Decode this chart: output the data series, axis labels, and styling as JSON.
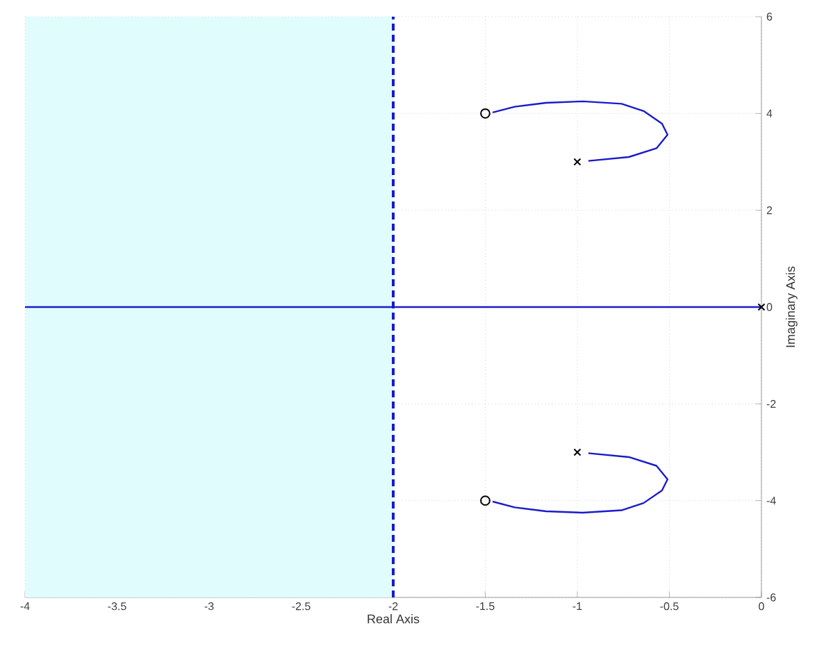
{
  "chart_data": {
    "type": "line",
    "xlabel": "Real Axis",
    "ylabel": "Imaginary Axis",
    "xlim": [
      -4,
      0
    ],
    "ylim": [
      -6,
      6
    ],
    "xticks": [
      -4,
      -3.5,
      -3,
      -2.5,
      -2,
      -1.5,
      -1,
      -0.5,
      0
    ],
    "yticks": [
      -6,
      -4,
      -2,
      0,
      2,
      4,
      6
    ],
    "grid": true,
    "line_style": "solid",
    "series": [
      {
        "color": "#1a1acc",
        "x": [
          -0.94,
          -0.72,
          -0.57,
          -0.51,
          -0.54,
          -0.64,
          -0.76,
          -0.97,
          -1.17,
          -1.34,
          -1.46
        ],
        "values": [
          3.02,
          3.1,
          3.28,
          3.56,
          3.79,
          4.05,
          4.2,
          4.25,
          4.22,
          4.14,
          4.02
        ]
      },
      {
        "color": "#1a1acc",
        "x": [
          -0.94,
          -0.72,
          -0.57,
          -0.51,
          -0.54,
          -0.64,
          -0.76,
          -0.97,
          -1.17,
          -1.34,
          -1.46
        ],
        "values": [
          -3.02,
          -3.1,
          -3.28,
          -3.56,
          -3.79,
          -4.05,
          -4.2,
          -4.25,
          -4.22,
          -4.14,
          -4.02
        ]
      },
      {
        "color": "#1a1acc",
        "x": [
          -4,
          0
        ],
        "values": [
          0,
          0
        ]
      },
      {
        "type": "scatter",
        "marker": "cross",
        "color": "#000000",
        "x": [
          -1.0,
          -1.0,
          0
        ],
        "values": [
          3,
          -3,
          0
        ]
      },
      {
        "type": "scatter",
        "marker": "circle",
        "color": "#000000",
        "x": [
          -1.5,
          -1.5
        ],
        "values": [
          4,
          -4
        ]
      }
    ],
    "bands": [
      {
        "axis": "x",
        "from": -4,
        "to": -2,
        "color": "#e0fcfc"
      }
    ],
    "ref_lines": [
      {
        "axis": "x",
        "value": -2,
        "color": "#1a1acc",
        "line_style": "dashed"
      }
    ]
  }
}
